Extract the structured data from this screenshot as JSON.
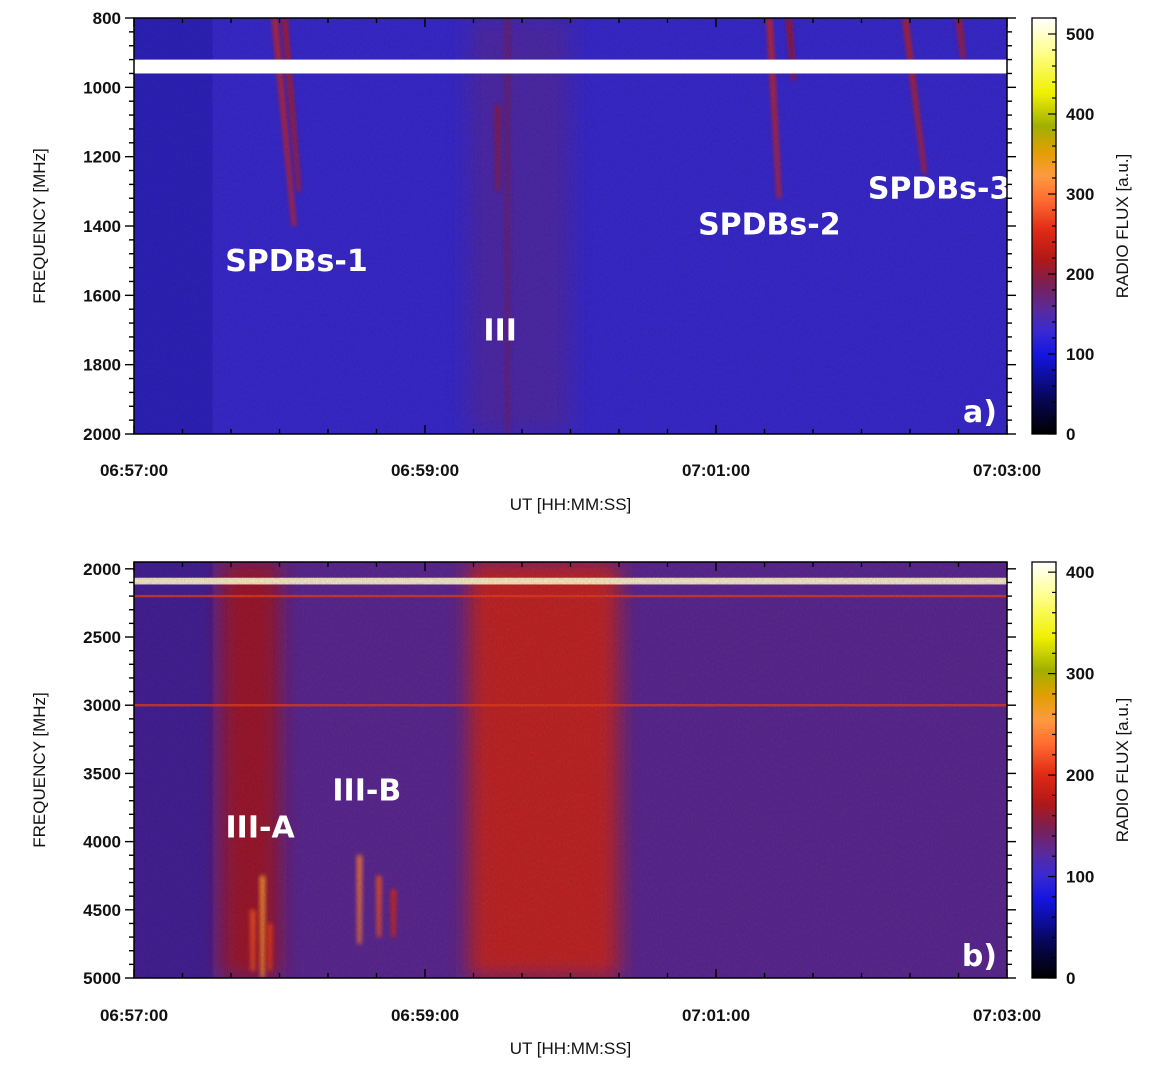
{
  "chart_data": [
    {
      "type": "heatmap",
      "panel_label": "a)",
      "xlabel": "UT [HH:MM:SS]",
      "ylabel": "FREQUENCY [MHz]",
      "colorbar_label": "RADIO FLUX [a.u.]",
      "x_tick_labels": [
        "06:57:00",
        "06:59:00",
        "07:01:00",
        "07:03:00"
      ],
      "x_range_seconds": [
        0,
        360
      ],
      "y_range_mhz": [
        800,
        2000
      ],
      "y_ticks": [
        800,
        1000,
        1200,
        1400,
        1600,
        1800,
        2000
      ],
      "y_inverted": true,
      "colorbar_range": [
        0,
        520
      ],
      "colorbar_ticks": [
        0,
        100,
        200,
        300,
        400,
        500
      ],
      "background_level": 130,
      "gap_band_mhz": [
        920,
        960
      ],
      "annotations": [
        {
          "text": "SPDBs-1",
          "t": 67,
          "f": 1530
        },
        {
          "text": "III",
          "t": 151,
          "f": 1730
        },
        {
          "text": "SPDBs-2",
          "t": 262,
          "f": 1425
        },
        {
          "text": "SPDBs-3",
          "t": 332,
          "f": 1320
        }
      ],
      "bursts": [
        {
          "t": 58,
          "f_start": 800,
          "f_end": 1400,
          "drift_s": 8,
          "level": 250
        },
        {
          "t": 62,
          "f_start": 800,
          "f_end": 1300,
          "drift_s": 6,
          "level": 230
        },
        {
          "t": 154,
          "f_start": 800,
          "f_end": 2000,
          "drift_s": 0,
          "level": 175
        },
        {
          "t": 150,
          "f_start": 1050,
          "f_end": 1300,
          "drift_s": 0,
          "level": 200
        },
        {
          "t": 262,
          "f_start": 800,
          "f_end": 1320,
          "drift_s": 4,
          "level": 250
        },
        {
          "t": 270,
          "f_start": 800,
          "f_end": 980,
          "drift_s": 2,
          "level": 220
        },
        {
          "t": 318,
          "f_start": 800,
          "f_end": 1250,
          "drift_s": 8,
          "level": 240
        },
        {
          "t": 340,
          "f_start": 800,
          "f_end": 920,
          "drift_s": 2,
          "level": 230
        }
      ],
      "broadband_regions": [
        {
          "t_start": 138,
          "t_end": 180,
          "level": 150
        }
      ]
    },
    {
      "type": "heatmap",
      "panel_label": "b)",
      "xlabel": "UT [HH:MM:SS]",
      "ylabel": "FREQUENCY [MHz]",
      "colorbar_label": "RADIO FLUX [a.u.]",
      "x_tick_labels": [
        "06:57:00",
        "06:59:00",
        "07:01:00",
        "07:03:00"
      ],
      "x_range_seconds": [
        0,
        360
      ],
      "y_range_mhz": [
        1950,
        5000
      ],
      "y_ticks": [
        2000,
        2500,
        3000,
        3500,
        4000,
        4500,
        5000
      ],
      "y_inverted": true,
      "colorbar_range": [
        0,
        410
      ],
      "colorbar_ticks": [
        0,
        100,
        200,
        300,
        400
      ],
      "background_level": 125,
      "annotations": [
        {
          "text": "III-A",
          "t": 52,
          "f": 3970
        },
        {
          "text": "III-B",
          "t": 96,
          "f": 3700
        }
      ],
      "bursts": [
        {
          "t": 53,
          "f_start": 4250,
          "f_end": 5000,
          "drift_s": 0,
          "level": 260
        },
        {
          "t": 49,
          "f_start": 4500,
          "f_end": 4950,
          "drift_s": 0,
          "level": 220
        },
        {
          "t": 56,
          "f_start": 4600,
          "f_end": 4950,
          "drift_s": 0,
          "level": 210
        },
        {
          "t": 93,
          "f_start": 4100,
          "f_end": 4750,
          "drift_s": 0,
          "level": 240
        },
        {
          "t": 101,
          "f_start": 4250,
          "f_end": 4700,
          "drift_s": 0,
          "level": 220
        },
        {
          "t": 107,
          "f_start": 4350,
          "f_end": 4700,
          "drift_s": 0,
          "level": 200
        }
      ],
      "broadband_regions": [
        {
          "t_start": 36,
          "t_end": 60,
          "level": 170
        },
        {
          "t_start": 138,
          "t_end": 200,
          "level": 195
        }
      ],
      "interference_lines_mhz": [
        2080,
        2100,
        2200,
        3000
      ]
    }
  ]
}
